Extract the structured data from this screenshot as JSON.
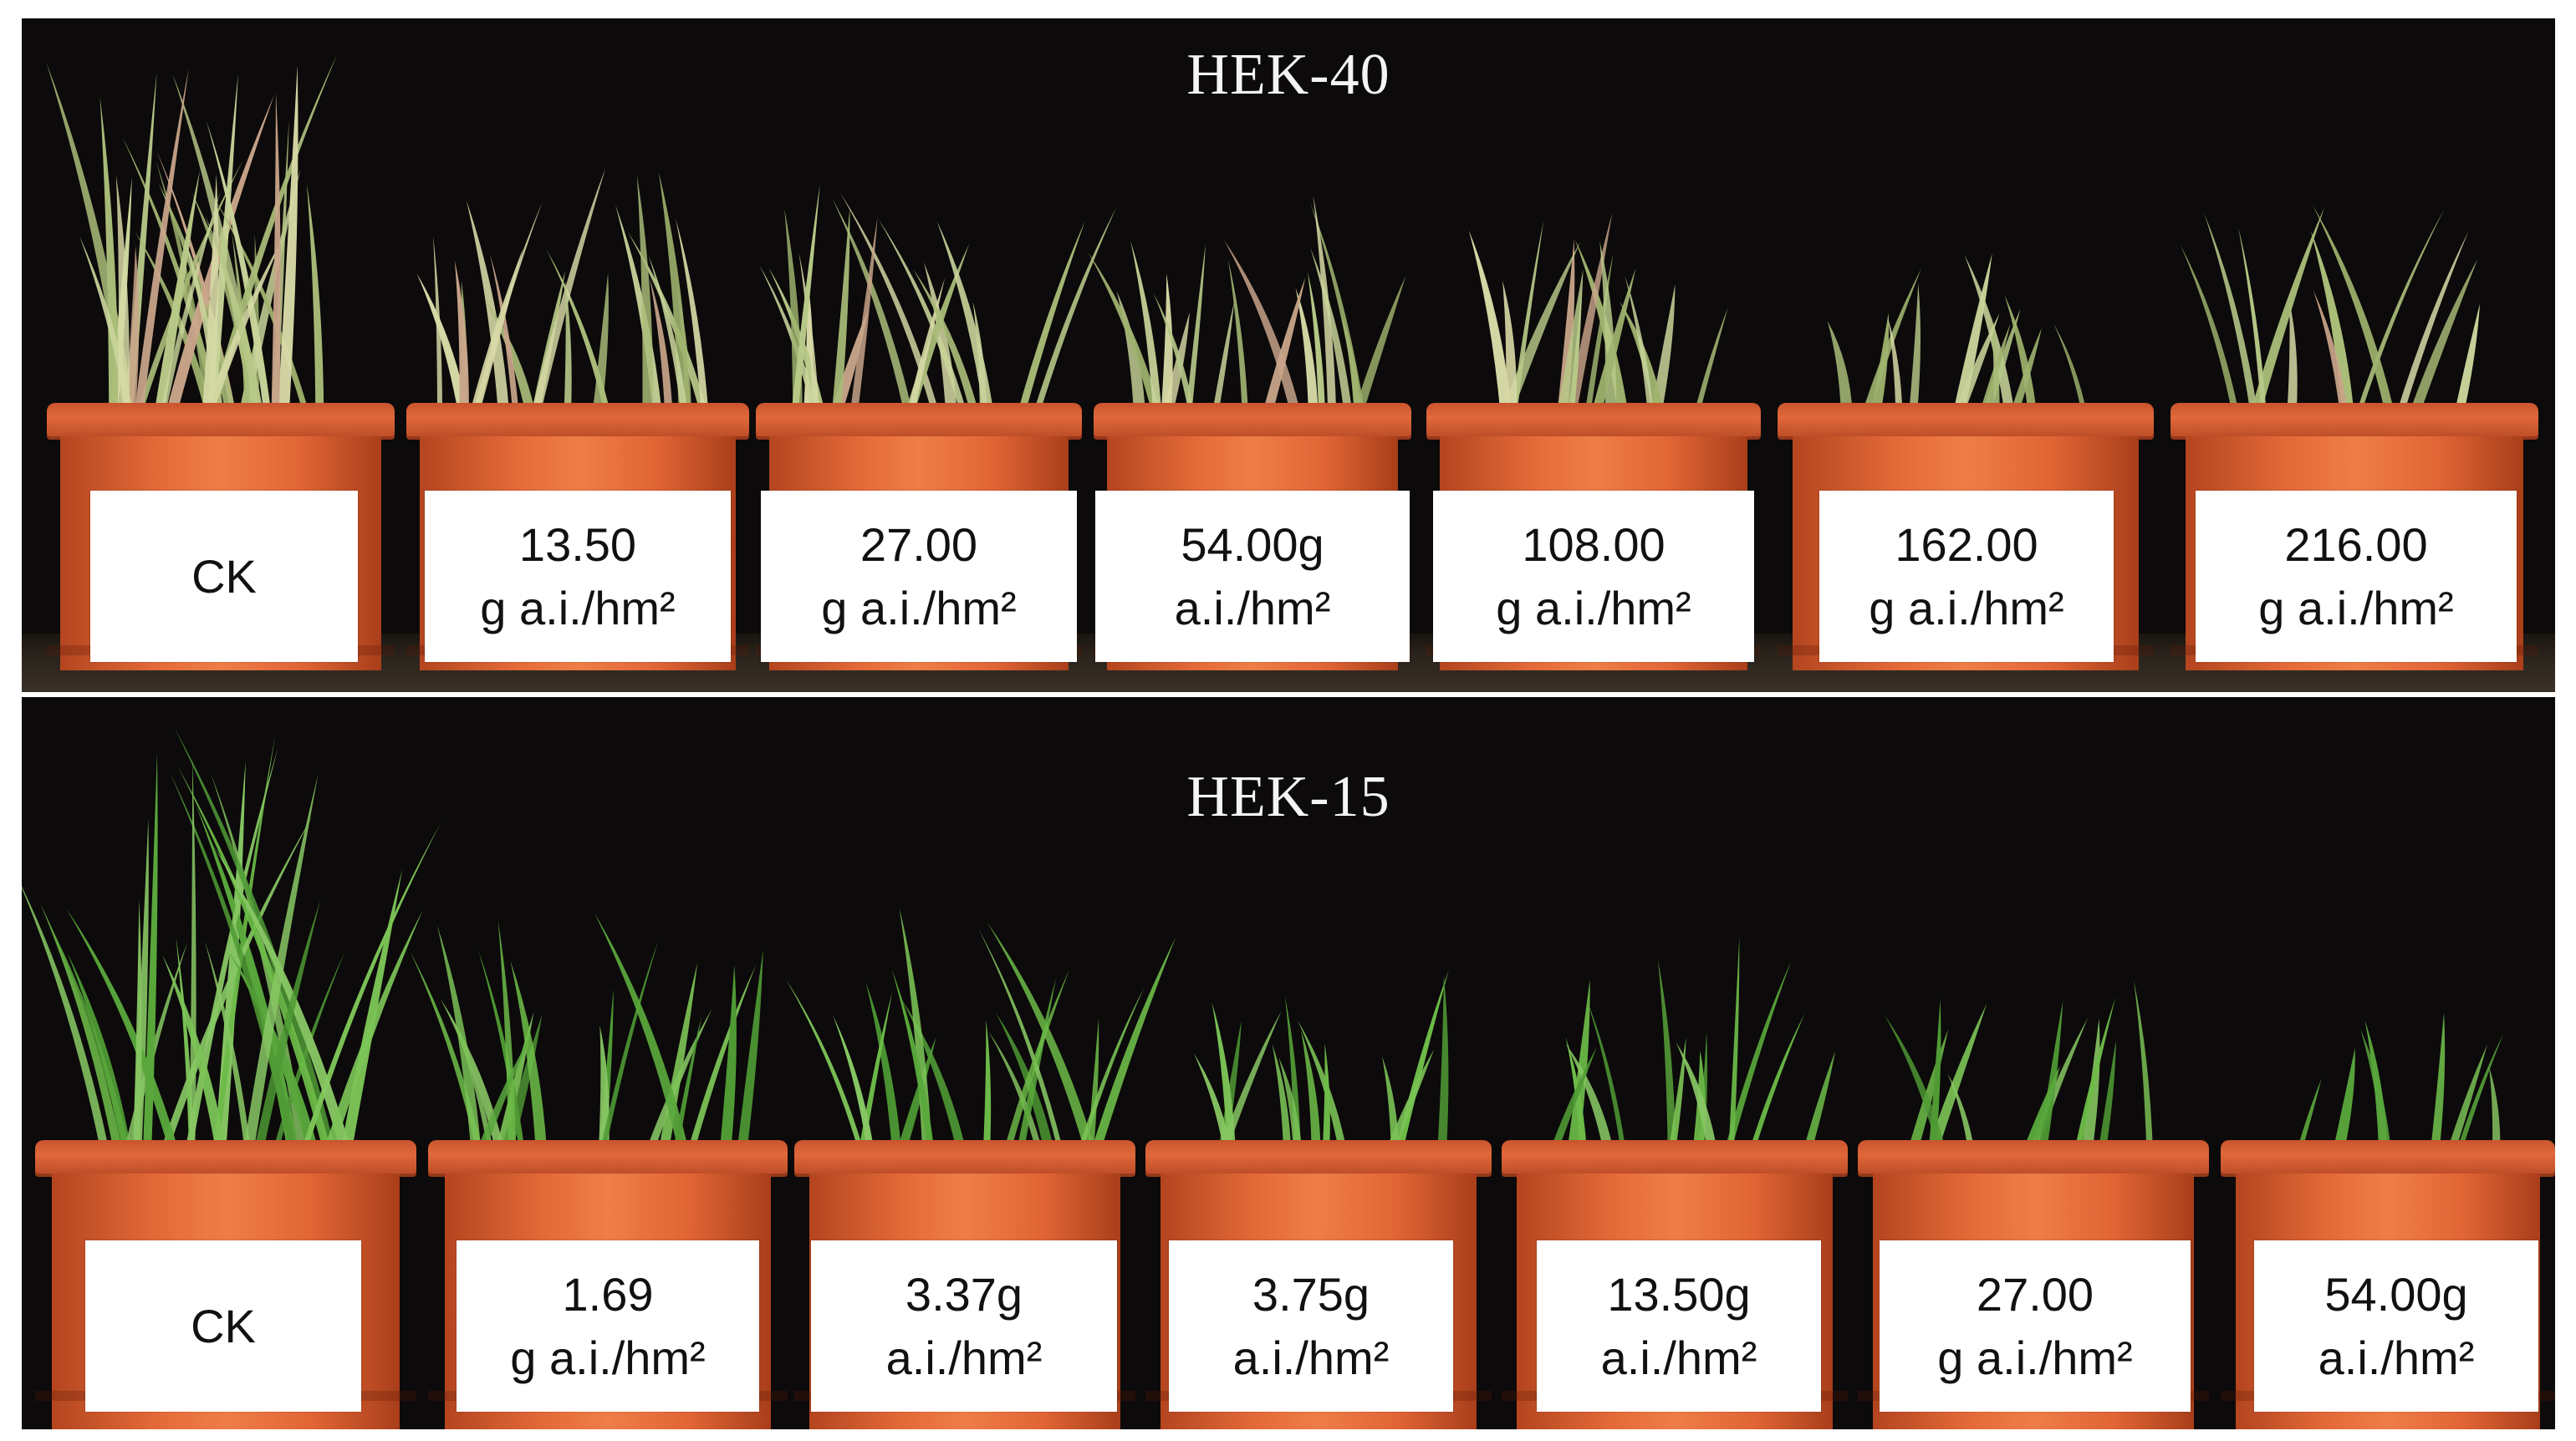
{
  "panels": [
    {
      "title": "HEK-40",
      "pots": [
        {
          "line1": "CK",
          "line2": ""
        },
        {
          "line1": "13.50",
          "line2": "g a.i./hm²"
        },
        {
          "line1": "27.00",
          "line2": "g a.i./hm²"
        },
        {
          "line1": "54.00g",
          "line2": "a.i./hm²"
        },
        {
          "line1": "108.00",
          "line2": "g a.i./hm²"
        },
        {
          "line1": "162.00",
          "line2": "g a.i./hm²"
        },
        {
          "line1": "216.00",
          "line2": "g a.i./hm²"
        }
      ]
    },
    {
      "title": "HEK-15",
      "pots": [
        {
          "line1": "CK",
          "line2": ""
        },
        {
          "line1": "1.69",
          "line2": "g a.i./hm²"
        },
        {
          "line1": "3.37g",
          "line2": "a.i./hm²"
        },
        {
          "line1": "3.75g",
          "line2": "a.i./hm²"
        },
        {
          "line1": "13.50g",
          "line2": "a.i./hm²"
        },
        {
          "line1": "27.00",
          "line2": "g a.i./hm²"
        },
        {
          "line1": "54.00g",
          "line2": "a.i./hm²"
        }
      ]
    }
  ],
  "colors": {
    "background": "#0c0a0a",
    "pot": "#e36a38",
    "leaf_top": "#b9c98a",
    "leaf_bottom": "#5fae3e"
  }
}
